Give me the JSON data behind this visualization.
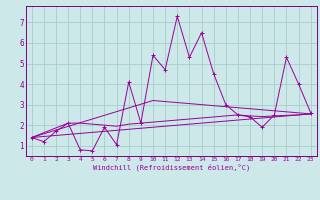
{
  "xlabel": "Windchill (Refroidissement éolien,°C)",
  "bg_color": "#cce8e8",
  "grid_color": "#aacccc",
  "line_color": "#990099",
  "spine_color": "#7a007a",
  "x_ticks": [
    0,
    1,
    2,
    3,
    4,
    5,
    6,
    7,
    8,
    9,
    10,
    11,
    12,
    13,
    14,
    15,
    16,
    17,
    18,
    19,
    20,
    21,
    22,
    23
  ],
  "y_ticks": [
    1,
    2,
    3,
    4,
    5,
    6,
    7
  ],
  "ylim": [
    0.5,
    7.8
  ],
  "xlim": [
    -0.5,
    23.5
  ],
  "series1_x": [
    0,
    1,
    2,
    3,
    4,
    5,
    6,
    7,
    8,
    9,
    10,
    11,
    12,
    13,
    14,
    15,
    16,
    17,
    18,
    19,
    20,
    21,
    22,
    23
  ],
  "series1_y": [
    1.4,
    1.2,
    1.7,
    2.1,
    0.8,
    0.75,
    1.9,
    1.05,
    4.1,
    2.1,
    5.4,
    4.7,
    7.3,
    5.3,
    6.5,
    4.5,
    3.0,
    2.5,
    2.4,
    1.9,
    2.5,
    5.3,
    4.0,
    2.6
  ],
  "series2_x": [
    0,
    3,
    4,
    5,
    6,
    7,
    8,
    9,
    10,
    11,
    12,
    13,
    14,
    15,
    16,
    17,
    18,
    19,
    20,
    21,
    22,
    23
  ],
  "series2_y": [
    1.4,
    2.1,
    2.1,
    2.05,
    2.0,
    1.95,
    2.05,
    2.1,
    2.15,
    2.2,
    2.25,
    2.3,
    2.35,
    2.4,
    2.45,
    2.5,
    2.45,
    2.42,
    2.45,
    2.48,
    2.5,
    2.55
  ],
  "series3_x": [
    0,
    23
  ],
  "series3_y": [
    1.4,
    2.55
  ],
  "series4_x": [
    0,
    10,
    23
  ],
  "series4_y": [
    1.4,
    3.2,
    2.55
  ]
}
